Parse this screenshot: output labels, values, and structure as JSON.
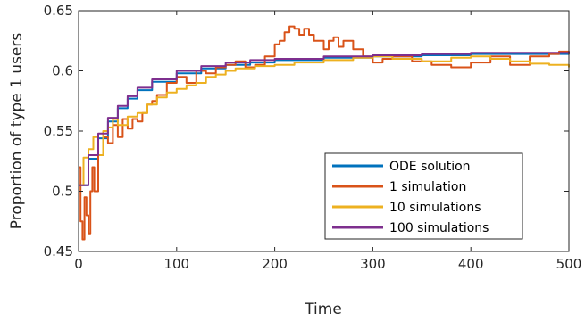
{
  "chart_data": {
    "type": "line",
    "xlabel": "Time",
    "ylabel": "Proportion of type 1 users",
    "xlim": [
      0,
      500
    ],
    "ylim": [
      0.45,
      0.65
    ],
    "x_ticks": [
      0,
      100,
      200,
      300,
      400,
      500
    ],
    "x_tick_labels": [
      "0",
      "100",
      "200",
      "300",
      "400",
      "500"
    ],
    "y_ticks": [
      0.45,
      0.5,
      0.55,
      0.6,
      0.65
    ],
    "y_tick_labels": [
      "0.45",
      "0.5",
      "0.55",
      "0.6",
      "0.65"
    ],
    "grid": false,
    "legend_position": "bottom-right",
    "series": [
      {
        "name": "ODE solution",
        "color": "#0072BD",
        "x": [
          0,
          10,
          20,
          30,
          40,
          50,
          60,
          75,
          100,
          125,
          150,
          175,
          200,
          250,
          300,
          350,
          400,
          450,
          500
        ],
        "y": [
          0.505,
          0.527,
          0.544,
          0.558,
          0.569,
          0.577,
          0.584,
          0.591,
          0.598,
          0.602,
          0.605,
          0.607,
          0.609,
          0.611,
          0.612,
          0.613,
          0.614,
          0.614,
          0.615
        ]
      },
      {
        "name": "1 simulation",
        "color": "#D95319",
        "x": [
          0,
          2,
          4,
          6,
          8,
          10,
          12,
          14,
          16,
          20,
          25,
          30,
          35,
          40,
          45,
          50,
          55,
          60,
          65,
          70,
          75,
          80,
          90,
          100,
          110,
          120,
          130,
          140,
          150,
          160,
          170,
          180,
          190,
          200,
          205,
          210,
          215,
          220,
          225,
          230,
          235,
          240,
          250,
          255,
          260,
          265,
          270,
          280,
          290,
          300,
          310,
          320,
          340,
          360,
          380,
          400,
          420,
          440,
          460,
          480,
          490,
          500
        ],
        "y": [
          0.52,
          0.475,
          0.46,
          0.495,
          0.48,
          0.465,
          0.5,
          0.52,
          0.5,
          0.53,
          0.545,
          0.54,
          0.555,
          0.545,
          0.56,
          0.552,
          0.56,
          0.558,
          0.565,
          0.572,
          0.575,
          0.58,
          0.59,
          0.595,
          0.59,
          0.6,
          0.598,
          0.603,
          0.605,
          0.608,
          0.603,
          0.605,
          0.612,
          0.622,
          0.625,
          0.632,
          0.637,
          0.635,
          0.63,
          0.635,
          0.63,
          0.625,
          0.618,
          0.625,
          0.628,
          0.62,
          0.625,
          0.618,
          0.612,
          0.607,
          0.61,
          0.612,
          0.608,
          0.605,
          0.603,
          0.607,
          0.612,
          0.605,
          0.612,
          0.614,
          0.616,
          0.614
        ]
      },
      {
        "name": "10 simulations",
        "color": "#EDB120",
        "x": [
          0,
          5,
          10,
          15,
          20,
          25,
          30,
          35,
          40,
          50,
          60,
          70,
          80,
          90,
          100,
          110,
          120,
          130,
          140,
          150,
          160,
          180,
          200,
          220,
          250,
          280,
          300,
          320,
          350,
          380,
          400,
          420,
          440,
          460,
          480,
          500
        ],
        "y": [
          0.505,
          0.528,
          0.535,
          0.545,
          0.53,
          0.55,
          0.553,
          0.56,
          0.555,
          0.562,
          0.565,
          0.572,
          0.578,
          0.582,
          0.585,
          0.588,
          0.59,
          0.595,
          0.597,
          0.6,
          0.602,
          0.604,
          0.605,
          0.607,
          0.609,
          0.611,
          0.612,
          0.61,
          0.608,
          0.611,
          0.612,
          0.61,
          0.608,
          0.606,
          0.605,
          0.603
        ]
      },
      {
        "name": "100 simulations",
        "color": "#7E2F8E",
        "x": [
          0,
          10,
          20,
          30,
          40,
          50,
          60,
          75,
          100,
          125,
          150,
          175,
          200,
          250,
          300,
          350,
          400,
          450,
          500
        ],
        "y": [
          0.505,
          0.53,
          0.548,
          0.561,
          0.571,
          0.579,
          0.586,
          0.593,
          0.6,
          0.604,
          0.607,
          0.609,
          0.61,
          0.612,
          0.613,
          0.614,
          0.615,
          0.615,
          0.616
        ]
      }
    ]
  }
}
